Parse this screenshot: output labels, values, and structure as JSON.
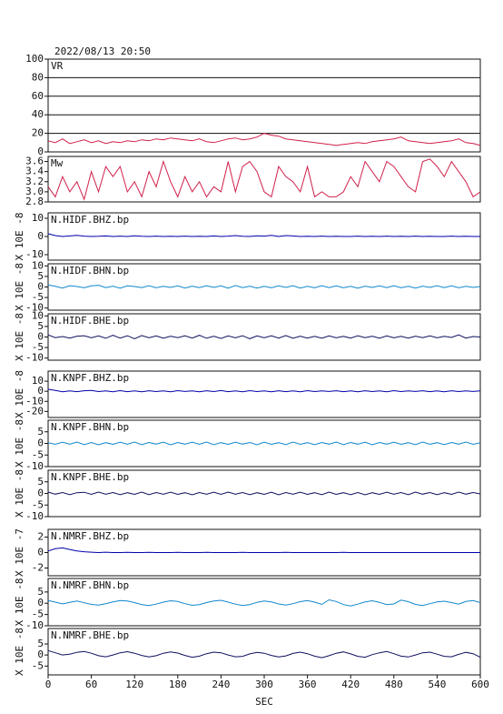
{
  "chart_data": {
    "type": "line",
    "title": "2022/08/13 20:50",
    "xlabel": "SEC",
    "xlim": [
      0,
      600
    ],
    "xticks": [
      0,
      60,
      120,
      180,
      240,
      300,
      360,
      420,
      480,
      540,
      600
    ],
    "x": [
      0,
      10,
      20,
      30,
      40,
      50,
      60,
      70,
      80,
      90,
      100,
      110,
      120,
      130,
      140,
      150,
      160,
      170,
      180,
      190,
      200,
      210,
      220,
      230,
      240,
      250,
      260,
      270,
      280,
      290,
      300,
      310,
      320,
      330,
      340,
      350,
      360,
      370,
      380,
      390,
      400,
      410,
      420,
      430,
      440,
      450,
      460,
      470,
      480,
      490,
      500,
      510,
      520,
      530,
      540,
      550,
      560,
      570,
      580,
      590,
      600
    ],
    "panels": [
      {
        "name": "VR",
        "color": "#d0204a",
        "grid": true,
        "ylim": [
          0,
          100
        ],
        "yticks": [
          0,
          20,
          40,
          60,
          80,
          100
        ],
        "values": [
          12,
          10,
          14,
          9,
          11,
          13,
          10,
          12,
          9,
          11,
          10,
          12,
          11,
          13,
          12,
          14,
          13,
          15,
          14,
          13,
          12,
          14,
          11,
          10,
          12,
          14,
          15,
          13,
          14,
          16,
          20,
          18,
          17,
          14,
          13,
          12,
          11,
          10,
          9,
          8,
          7,
          8,
          9,
          10,
          9,
          11,
          12,
          13,
          14,
          16,
          12,
          11,
          10,
          9,
          10,
          11,
          12,
          14,
          10,
          9,
          7
        ]
      },
      {
        "name": "Mw",
        "color": "#d0204a",
        "grid": false,
        "ylim": [
          2.8,
          3.7
        ],
        "yticks": [
          {
            "value": 2.8,
            "label": "2.8"
          },
          {
            "value": 3,
            "label": "3.0"
          },
          {
            "value": 3.2,
            "label": "3.2"
          },
          {
            "value": 3.4,
            "label": "3.4"
          },
          {
            "value": 3.6,
            "label": "3.6"
          }
        ],
        "values": [
          3.1,
          2.9,
          3.3,
          3.0,
          3.2,
          2.85,
          3.4,
          3.0,
          3.5,
          3.3,
          3.5,
          3.0,
          3.2,
          2.9,
          3.4,
          3.1,
          3.6,
          3.2,
          2.9,
          3.3,
          3.0,
          3.2,
          2.9,
          3.1,
          3.0,
          3.6,
          3.0,
          3.5,
          3.6,
          3.4,
          3.0,
          2.9,
          3.5,
          3.3,
          3.2,
          3.0,
          3.5,
          2.9,
          3.0,
          2.9,
          2.9,
          3.0,
          3.3,
          3.1,
          3.6,
          3.4,
          3.2,
          3.6,
          3.5,
          3.3,
          3.1,
          3.0,
          3.6,
          3.65,
          3.5,
          3.3,
          3.6,
          3.4,
          3.2,
          2.9,
          3.0
        ]
      },
      {
        "name": "N.HIDF.BHZ.bp",
        "ylabel": "X 10E -8",
        "color": "#0000aa",
        "ylim": [
          -13,
          13
        ],
        "yticks": [
          -10,
          0,
          10
        ],
        "values": [
          1.5,
          0.5,
          0,
          0.3,
          0.6,
          0.2,
          0,
          0.1,
          0.3,
          0,
          0.2,
          0,
          0.4,
          0.1,
          0,
          0.2,
          0,
          0.1,
          0,
          0.2,
          0,
          0.1,
          0,
          0.3,
          0,
          0.2,
          0.5,
          0.1,
          0,
          0.4,
          0.2,
          0.6,
          0,
          0.5,
          0.3,
          0,
          0.1,
          0,
          0.2,
          0,
          0.1,
          0,
          0,
          0.2,
          0,
          0.1,
          0,
          0.2,
          0,
          0.1,
          0,
          0.2,
          0,
          0.1,
          0,
          0,
          0.2,
          0,
          0.1,
          0,
          0
        ]
      },
      {
        "name": "N.HIDF.BHN.bp",
        "ylabel": "X 10E -8",
        "color": "#1188cc",
        "ylim": [
          -11,
          11
        ],
        "yticks": [
          -10,
          -5,
          0,
          5,
          10
        ],
        "values": [
          1,
          0.3,
          -0.5,
          0.6,
          0.2,
          -0.4,
          0.5,
          0.8,
          -0.3,
          0.4,
          -0.6,
          0.5,
          0.2,
          -0.3,
          0.6,
          -0.4,
          0.3,
          -0.2,
          0.5,
          -0.5,
          0.4,
          -0.3,
          0.6,
          -0.2,
          0.5,
          -0.6,
          0.7,
          -0.3,
          0.4,
          -0.5,
          0.3,
          -0.4,
          0.5,
          -0.2,
          0.6,
          -0.5,
          0.3,
          -0.4,
          0.6,
          -0.3,
          0.5,
          -0.4,
          0.3,
          -0.6,
          0.4,
          -0.2,
          0.5,
          -0.3,
          0.6,
          -0.4,
          0.3,
          -0.5,
          0.4,
          -0.2,
          0.6,
          -0.3,
          0.5,
          -0.4,
          0.3,
          -0.2,
          0.2
        ]
      },
      {
        "name": "N.HIDF.BHE.bp",
        "ylabel": "X 10E -8",
        "color": "#101060",
        "ylim": [
          -11,
          11
        ],
        "yticks": [
          -10,
          -5,
          0,
          5,
          10
        ],
        "values": [
          1,
          -0.3,
          0.2,
          -0.5,
          0.4,
          0.6,
          -0.4,
          0.5,
          -0.6,
          0.8,
          -0.5,
          0.6,
          -0.8,
          0.7,
          -0.4,
          0.5,
          -0.6,
          0.4,
          -0.3,
          0.6,
          -0.5,
          0.8,
          -0.6,
          0.4,
          -0.7,
          0.5,
          -0.4,
          0.6,
          -0.8,
          0.5,
          -0.4,
          0.6,
          -0.5,
          0.7,
          -0.6,
          0.4,
          -0.5,
          0.3,
          -0.6,
          0.5,
          -0.4,
          0.3,
          -0.5,
          0.6,
          -0.3,
          0.4,
          -0.6,
          0.5,
          -0.4,
          0.3,
          -0.5,
          0.4,
          -0.3,
          0.5,
          -0.4,
          0.3,
          -0.2,
          1,
          -0.5,
          0.2,
          0
        ]
      },
      {
        "name": "N.KNPF.BHZ.bp",
        "ylabel": "X 10E -8",
        "color": "#0000aa",
        "ylim": [
          -26,
          20
        ],
        "yticks": [
          -20,
          -10,
          0,
          10
        ],
        "values": [
          2,
          0.8,
          -0.5,
          0.3,
          -0.4,
          0.5,
          0.8,
          -0.3,
          0.4,
          -0.5,
          0.6,
          -0.4,
          0.3,
          -0.6,
          0.5,
          -0.3,
          0.4,
          -0.5,
          0.6,
          -0.2,
          0.4,
          -0.6,
          0.5,
          -0.3,
          0.7,
          -0.4,
          0.3,
          -0.5,
          0.6,
          -0.3,
          0.4,
          -0.6,
          0.5,
          -0.4,
          0.3,
          -0.5,
          0.6,
          -0.3,
          0.4,
          -0.2,
          0.5,
          -0.4,
          0.3,
          -0.6,
          0.5,
          -0.3,
          0.4,
          -0.5,
          0.6,
          -0.3,
          0.4,
          -0.2,
          0.5,
          -0.4,
          0.3,
          -0.6,
          0.5,
          -0.3,
          0.4,
          -0.2,
          0.3
        ]
      },
      {
        "name": "N.KNPF.BHN.bp",
        "ylabel": "X 10E -8",
        "color": "#1188cc",
        "ylim": [
          -10,
          10
        ],
        "yticks": [
          -10,
          -5,
          0,
          5
        ],
        "values": [
          0.3,
          -0.4,
          0.5,
          -0.3,
          0.6,
          -0.5,
          0.4,
          -0.6,
          0.3,
          -0.4,
          0.5,
          -0.3,
          0.6,
          -0.5,
          0.4,
          -0.3,
          0.5,
          -0.6,
          0.4,
          -0.3,
          0.5,
          -0.4,
          0.6,
          -0.5,
          0.3,
          -0.4,
          0.5,
          -0.3,
          0.4,
          -0.6,
          0.5,
          -0.4,
          0.3,
          -0.5,
          0.6,
          -0.4,
          0.3,
          -0.5,
          0.4,
          -0.3,
          0.6,
          -0.5,
          0.4,
          -0.3,
          0.5,
          -0.6,
          0.4,
          -0.3,
          0.5,
          -0.4,
          0.3,
          -0.5,
          0.6,
          -0.4,
          0.3,
          -0.5,
          0.4,
          -0.3,
          0.6,
          -0.4,
          0.3
        ]
      },
      {
        "name": "N.KNPF.BHE.bp",
        "ylabel": "X 10E -8",
        "color": "#101060",
        "ylim": [
          -10,
          10
        ],
        "yticks": [
          -10,
          -5,
          0,
          5
        ],
        "values": [
          0.6,
          -0.3,
          0.4,
          -0.5,
          0.3,
          0.5,
          -0.4,
          0.6,
          -0.3,
          0.4,
          -0.5,
          0.3,
          -0.4,
          0.6,
          -0.5,
          0.4,
          -0.3,
          0.5,
          -0.4,
          0.3,
          -0.6,
          0.4,
          -0.3,
          0.5,
          -0.4,
          0.6,
          -0.3,
          0.4,
          -0.5,
          0.3,
          -0.4,
          0.5,
          -0.6,
          0.4,
          -0.3,
          0.5,
          -0.4,
          0.3,
          -0.5,
          0.6,
          -0.4,
          0.3,
          -0.5,
          0.4,
          -0.6,
          0.3,
          -0.4,
          0.5,
          -0.3,
          0.4,
          -0.5,
          0.6,
          -0.3,
          0.4,
          -0.5,
          0.3,
          -0.4,
          0.6,
          -0.3,
          0.4,
          -0.2
        ]
      },
      {
        "name": "N.NMRF.BHZ.bp",
        "ylabel": "X 10E -7",
        "color": "#0000aa",
        "ylim": [
          -3,
          3
        ],
        "yticks": [
          -2,
          0,
          2
        ],
        "values": [
          0.2,
          0.5,
          0.6,
          0.4,
          0.2,
          0.1,
          0.05,
          0,
          0.05,
          0,
          0,
          0.02,
          0,
          0,
          0.02,
          0,
          0,
          0,
          0.02,
          0,
          0,
          0,
          0.02,
          0,
          0,
          0,
          0,
          0.02,
          0,
          0,
          0,
          0,
          0,
          0.02,
          0,
          0,
          0,
          0,
          0,
          0,
          0,
          0.02,
          0,
          0,
          0,
          0,
          0,
          0,
          0,
          0,
          0,
          0,
          0,
          0,
          0,
          0,
          0,
          0,
          0,
          0,
          0
        ]
      },
      {
        "name": "N.NMRF.BHN.bp",
        "ylabel": "X 10E -8",
        "color": "#1188cc",
        "ylim": [
          -10,
          11
        ],
        "yticks": [
          -10,
          -5,
          0,
          5
        ],
        "values": [
          1.2,
          0.5,
          -0.3,
          0.4,
          1,
          0.2,
          -0.5,
          -0.8,
          -0.2,
          0.6,
          1.2,
          1,
          0.3,
          -0.6,
          -1,
          -0.4,
          0.5,
          1.1,
          0.8,
          -0.2,
          -0.9,
          -0.6,
          0.3,
          1,
          1.3,
          0.5,
          -0.4,
          -1,
          -0.6,
          0.4,
          1,
          0.6,
          -0.3,
          -0.8,
          -0.2,
          0.7,
          1.2,
          0.5,
          -0.5,
          1.5,
          0.8,
          -0.6,
          -1.2,
          -0.4,
          0.6,
          1.1,
          0.4,
          -0.6,
          -0.3,
          1.4,
          0.7,
          -0.5,
          -1,
          -0.2,
          0.6,
          0.9,
          0.3,
          -0.4,
          0.8,
          1.2,
          0.3
        ]
      },
      {
        "name": "N.NMRF.BHE.bp",
        "ylabel": "X 10E -8",
        "color": "#101060",
        "ylim": [
          -9,
          12
        ],
        "yticks": [
          -5,
          0,
          5
        ],
        "values": [
          2,
          1,
          0,
          0.4,
          1.2,
          1.6,
          0.8,
          -0.3,
          -0.8,
          0,
          1,
          1.5,
          0.8,
          -0.2,
          -0.9,
          -0.3,
          0.8,
          1.4,
          0.9,
          -0.2,
          -1,
          -0.5,
          0.6,
          1.3,
          1,
          0,
          -0.8,
          -0.6,
          0.5,
          1.2,
          0.8,
          -0.2,
          -0.9,
          -0.4,
          0.7,
          1.3,
          0.6,
          -0.5,
          -1.2,
          -0.3,
          0.8,
          1.4,
          0.5,
          -0.6,
          -1,
          0.2,
          1,
          1.6,
          0.6,
          -0.5,
          -0.9,
          0,
          1,
          1.3,
          0.4,
          -0.6,
          -0.8,
          0.3,
          1.2,
          0.6,
          -1
        ]
      }
    ]
  }
}
